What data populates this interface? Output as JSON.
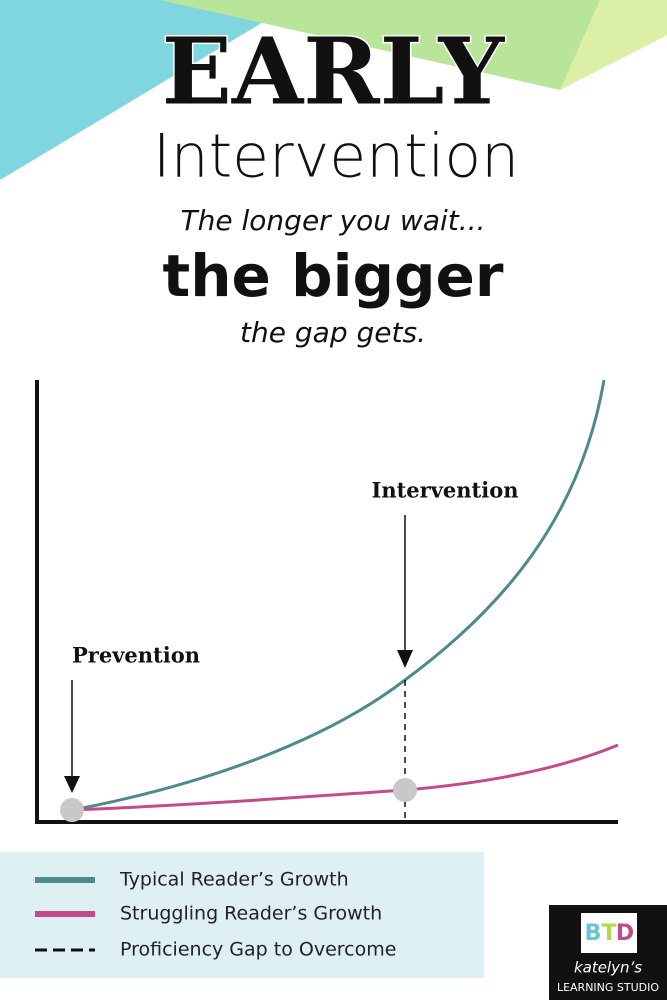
{
  "header": {
    "title": "EARLY",
    "subtitle": "Intervention"
  },
  "tagline": {
    "line1": "The longer you wait...",
    "line2": "the bigger",
    "line3": "the gap gets."
  },
  "diagram": {
    "labels": {
      "intervention": "Intervention",
      "prevention": "Prevention"
    }
  },
  "legend": {
    "items": [
      "Typical Reader’s Growth",
      "Struggling Reader’s Growth",
      "Proficiency Gap to Overcome"
    ]
  },
  "logo": {
    "letters": [
      "B",
      "T",
      "D"
    ],
    "name": "katelyn’s",
    "studio": "LEARNING STUDIO"
  }
}
